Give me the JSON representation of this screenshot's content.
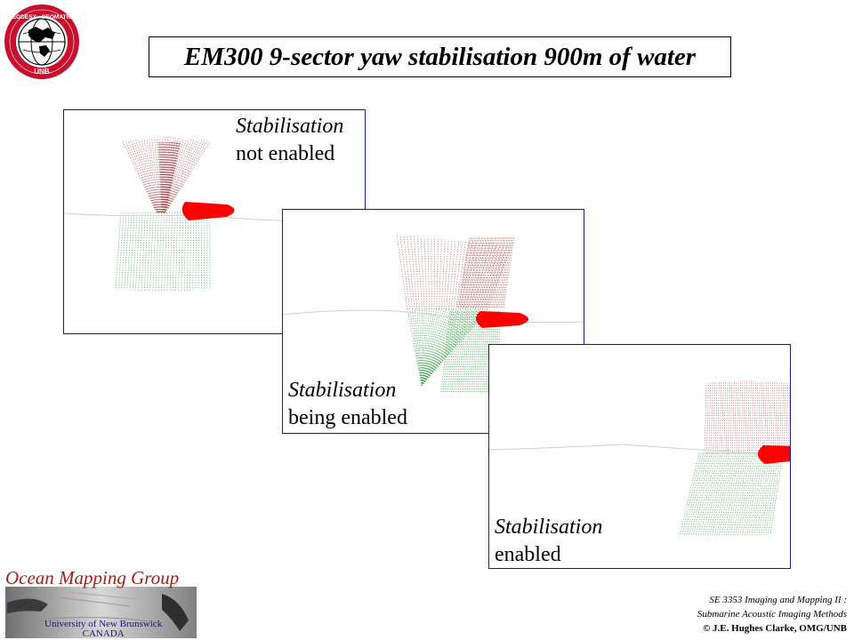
{
  "title": "EM300 9-sector yaw stabilisation 900m of water",
  "logo": {
    "ring_text_top": "GEODESY AND GEOMATICS ENGINEERING",
    "ring_text_bottom": "UNB"
  },
  "panels": [
    {
      "line1": "Stabilisation",
      "line2": "not enabled"
    },
    {
      "line1": "Stabilisation",
      "line2": "being enabled"
    },
    {
      "line1": "Stabilisation",
      "line2": "enabled"
    }
  ],
  "colors": {
    "beam_port": "#a8454a",
    "beam_starboard": "#2e9a3a",
    "ship": "#ff0000",
    "panel_border": "#1a1a8c",
    "omg_title": "#a0201a"
  },
  "footer": {
    "group_name": "Ocean Mapping Group",
    "university": "University of New Brunswick",
    "country": "CANADA",
    "course_line1": "SE 3353 Imaging and Mapping II :",
    "course_line2": "Submarine Acoustic Imaging Methods",
    "copyright": "© J.E. Hughes Clarke, OMG/UNB"
  }
}
